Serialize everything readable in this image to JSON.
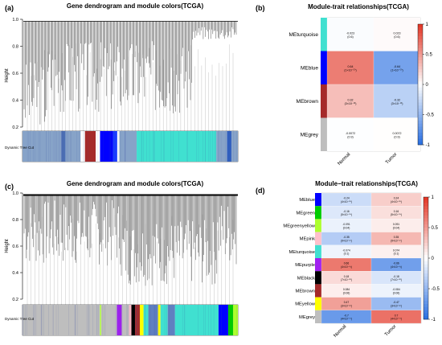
{
  "chart_data": [
    {
      "panel": "(a)",
      "type": "dendrogram",
      "title": "Gene dendrogram and module colors(TCGA)",
      "ylabel": "Height",
      "yticks": [
        "0.2",
        "0.4",
        "0.6",
        "0.8",
        "1.0"
      ],
      "ylim": [
        0.2,
        1.0
      ],
      "colorbar_label": "Dynamic Tree Cut",
      "module_bar": [
        {
          "color": "#87a3c8",
          "frac": 0.18
        },
        {
          "color": "#4c6fb4",
          "frac": 0.02
        },
        {
          "color": "#87a3c8",
          "frac": 0.07
        },
        {
          "color": "#ffffff",
          "frac": 0.02
        },
        {
          "color": "#a52a2a",
          "frac": 0.05
        },
        {
          "color": "#ffffff",
          "frac": 0.02
        },
        {
          "color": "#0000ff",
          "frac": 0.06
        },
        {
          "color": "#1a3cff",
          "frac": 0.02
        },
        {
          "color": "#ffffff",
          "frac": 0.01
        },
        {
          "color": "#87a3c8",
          "frac": 0.08
        },
        {
          "color": "#40e0d0",
          "frac": 0.37
        },
        {
          "color": "#87a3c8",
          "frac": 0.05
        },
        {
          "color": "#3060c0",
          "frac": 0.02
        },
        {
          "color": "#87a3c8",
          "frac": 0.03
        }
      ]
    },
    {
      "panel": "(b)",
      "type": "heatmap",
      "title": "Module-trait relationships(TCGA)",
      "columns": [
        "Normal",
        "Tumor"
      ],
      "rows": [
        {
          "name": "MEturquoise",
          "color": "#40e0d0",
          "cells": [
            {
              "value": -0.023,
              "label": "-0.023",
              "p": "(0.6)"
            },
            {
              "value": 0.023,
              "label": "0.023",
              "p": "(0.6)"
            }
          ]
        },
        {
          "name": "MEblue",
          "color": "#0000ff",
          "cells": [
            {
              "value": 0.64,
              "label": "0.64",
              "p": "(1×10⁻⁵⁹)"
            },
            {
              "value": -0.64,
              "label": "-0.64",
              "p": "(1×10⁻⁵⁹)"
            }
          ]
        },
        {
          "name": "MEbrown",
          "color": "#a52a2a",
          "cells": [
            {
              "value": 0.32,
              "label": "0.32",
              "p": "(3×10⁻¹³)"
            },
            {
              "value": -0.32,
              "label": "-0.32",
              "p": "(3×10⁻¹³)"
            }
          ]
        },
        {
          "name": "MEgrey",
          "color": "#bebebe",
          "cells": [
            {
              "value": -0.0072,
              "label": "-0.0072",
              "p": "(0.9)"
            },
            {
              "value": 0.0072,
              "label": "0.0072",
              "p": "(0.9)"
            }
          ]
        }
      ],
      "legend_ticks": [
        "1",
        "0.5",
        "0",
        "-0.5",
        "-1"
      ],
      "vlim": [
        -1,
        1
      ]
    },
    {
      "panel": "(c)",
      "type": "dendrogram",
      "title": "Gene dendrogram and module colors(TCGA)",
      "ylabel": "Height",
      "yticks": [
        "0.2",
        "0.4",
        "0.6",
        "0.8",
        "1.0"
      ],
      "ylim": [
        0.2,
        1.0
      ],
      "colorbar_label": "Dynamic Tree Cut",
      "module_bar": [
        {
          "color": "#bebebe",
          "frac": 0.32
        },
        {
          "color": "#adff2f",
          "frac": 0.005
        },
        {
          "color": "#bebebe",
          "frac": 0.065
        },
        {
          "color": "#a020f0",
          "frac": 0.02
        },
        {
          "color": "#bebebe",
          "frac": 0.03
        },
        {
          "color": "#ffc0cb",
          "frac": 0.01
        },
        {
          "color": "#000000",
          "frac": 0.015
        },
        {
          "color": "#a52a2a",
          "frac": 0.02
        },
        {
          "color": "#ffff00",
          "frac": 0.015
        },
        {
          "color": "#40e0d0",
          "frac": 0.02
        },
        {
          "color": "#6080c0",
          "frac": 0.04
        },
        {
          "color": "#ffff00",
          "frac": 0.01
        },
        {
          "color": "#40e0d0",
          "frac": 0.03
        },
        {
          "color": "#6080c0",
          "frac": 0.03
        },
        {
          "color": "#40e0d0",
          "frac": 0.18
        },
        {
          "color": "#0000ff",
          "frac": 0.04
        },
        {
          "color": "#00cc00",
          "frac": 0.02
        },
        {
          "color": "#adff2f",
          "frac": 0.02
        }
      ]
    },
    {
      "panel": "(d)",
      "type": "heatmap",
      "title": "Module−trait relationships(TCGA)",
      "columns": [
        "Normal",
        "Tumor"
      ],
      "rows": [
        {
          "name": "MEblue",
          "color": "#0000ff",
          "cells": [
            {
              "value": -0.24,
              "label": "-0.24",
              "p": "(4×10⁻⁰⁸)"
            },
            {
              "value": 0.24,
              "label": "0.24",
              "p": "(4×10⁻⁰⁸)"
            }
          ]
        },
        {
          "name": "MEgreen",
          "color": "#00cc00",
          "cells": [
            {
              "value": -0.16,
              "label": "-0.16",
              "p": "(5×10⁻⁰⁴)"
            },
            {
              "value": 0.16,
              "label": "0.16",
              "p": "(5×10⁻⁰⁴)"
            }
          ]
        },
        {
          "name": "MEgreenyellow",
          "color": "#adff2f",
          "cells": [
            {
              "value": -0.091,
              "label": "-0.091",
              "p": "(0.04)"
            },
            {
              "value": 0.091,
              "label": "0.091",
              "p": "(0.04)"
            }
          ]
        },
        {
          "name": "MEpink",
          "color": "#ffc0cb",
          "cells": [
            {
              "value": -0.35,
              "label": "-0.35",
              "p": "(9×10⁻¹⁶)"
            },
            {
              "value": 0.35,
              "label": "0.35",
              "p": "(9×10⁻¹⁶)"
            }
          ]
        },
        {
          "name": "MEturquoise",
          "color": "#40e0d0",
          "cells": [
            {
              "value": -0.074,
              "label": "-0.074",
              "p": "(0.1)"
            },
            {
              "value": 0.074,
              "label": "0.074",
              "p": "(0.1)"
            }
          ]
        },
        {
          "name": "MEpurple",
          "color": "#a020f0",
          "cells": [
            {
              "value": 0.66,
              "label": "0.66",
              "p": "(4×10⁻⁶²)"
            },
            {
              "value": -0.66,
              "label": "-0.66",
              "p": "(4×10⁻⁶²)"
            }
          ]
        },
        {
          "name": "MEblack",
          "color": "#000000",
          "cells": [
            {
              "value": 0.18,
              "label": "0.18",
              "p": "(7×10⁻⁰⁵)"
            },
            {
              "value": -0.18,
              "label": "-0.18",
              "p": "(7×10⁻⁰⁵)"
            }
          ]
        },
        {
          "name": "MEbrown",
          "color": "#a52a2a",
          "cells": [
            {
              "value": 0.084,
              "label": "0.084",
              "p": "(0.06)"
            },
            {
              "value": -0.084,
              "label": "-0.084",
              "p": "(0.06)"
            }
          ]
        },
        {
          "name": "MEyellow",
          "color": "#ffff00",
          "cells": [
            {
              "value": 0.47,
              "label": "0.47",
              "p": "(3×10⁻²⁹)"
            },
            {
              "value": -0.47,
              "label": "-0.47",
              "p": "(3×10⁻²⁹)"
            }
          ]
        },
        {
          "name": "MEgrey",
          "color": "#bebebe",
          "cells": [
            {
              "value": -0.7,
              "label": "-0.7",
              "p": "(4×10⁻⁷⁴)"
            },
            {
              "value": 0.7,
              "label": "0.7",
              "p": "(4×10⁻⁷⁴)"
            }
          ]
        }
      ],
      "legend_ticks": [
        "1",
        "0.5",
        "0",
        "-0.5",
        "-1"
      ],
      "vlim": [
        -1,
        1
      ]
    }
  ]
}
